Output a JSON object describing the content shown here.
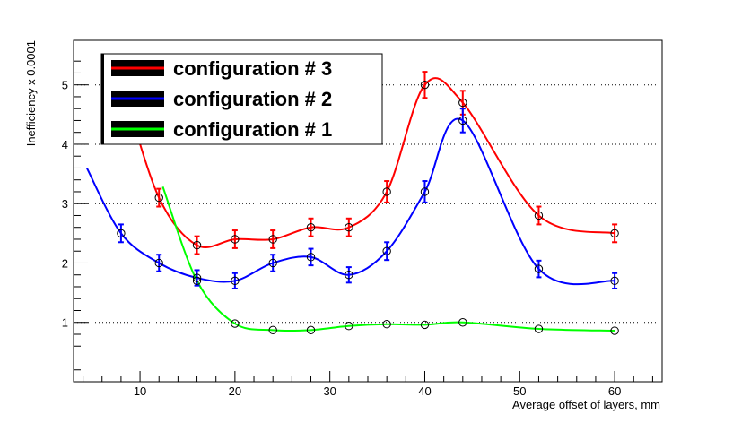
{
  "chart_data": {
    "type": "scatter",
    "title": "",
    "xlabel": "Average offset of layers, mm",
    "ylabel": "Inefficiency x 0.0001",
    "xlim": [
      3,
      65
    ],
    "ylim": [
      0,
      5.75
    ],
    "x_ticks": [
      10,
      20,
      30,
      40,
      50,
      60
    ],
    "y_ticks": [
      1,
      2,
      3,
      4,
      5
    ],
    "grid": "horizontal dotted at major y ticks",
    "legend_position": "top-left",
    "series": [
      {
        "name": "configuration # 3",
        "color": "#ff0000",
        "x": [
          12,
          16,
          20,
          24,
          28,
          32,
          36,
          40,
          44,
          52,
          60
        ],
        "y": [
          3.1,
          2.3,
          2.4,
          2.4,
          2.6,
          2.6,
          3.2,
          5.0,
          4.7,
          2.8,
          2.5
        ],
        "err": [
          0.15,
          0.15,
          0.15,
          0.15,
          0.15,
          0.15,
          0.18,
          0.22,
          0.2,
          0.15,
          0.15
        ]
      },
      {
        "name": "configuration # 2",
        "color": "#0000ff",
        "x": [
          8,
          12,
          16,
          20,
          24,
          28,
          32,
          36,
          40,
          44,
          52,
          60
        ],
        "y": [
          2.5,
          2.0,
          1.75,
          1.7,
          2.0,
          2.1,
          1.8,
          2.2,
          3.2,
          4.4,
          1.9,
          1.7
        ],
        "err": [
          0.15,
          0.14,
          0.13,
          0.13,
          0.14,
          0.14,
          0.13,
          0.15,
          0.18,
          0.2,
          0.14,
          0.13
        ]
      },
      {
        "name": "configuration # 1",
        "color": "#00ff00",
        "x": [
          16,
          20,
          24,
          28,
          32,
          36,
          40,
          44,
          52,
          60
        ],
        "y": [
          1.7,
          0.98,
          0.87,
          0.87,
          0.94,
          0.97,
          0.96,
          1.0,
          0.89,
          0.86
        ],
        "err": [
          0.02,
          0.02,
          0.02,
          0.02,
          0.02,
          0.02,
          0.02,
          0.02,
          0.02,
          0.02
        ]
      }
    ]
  }
}
